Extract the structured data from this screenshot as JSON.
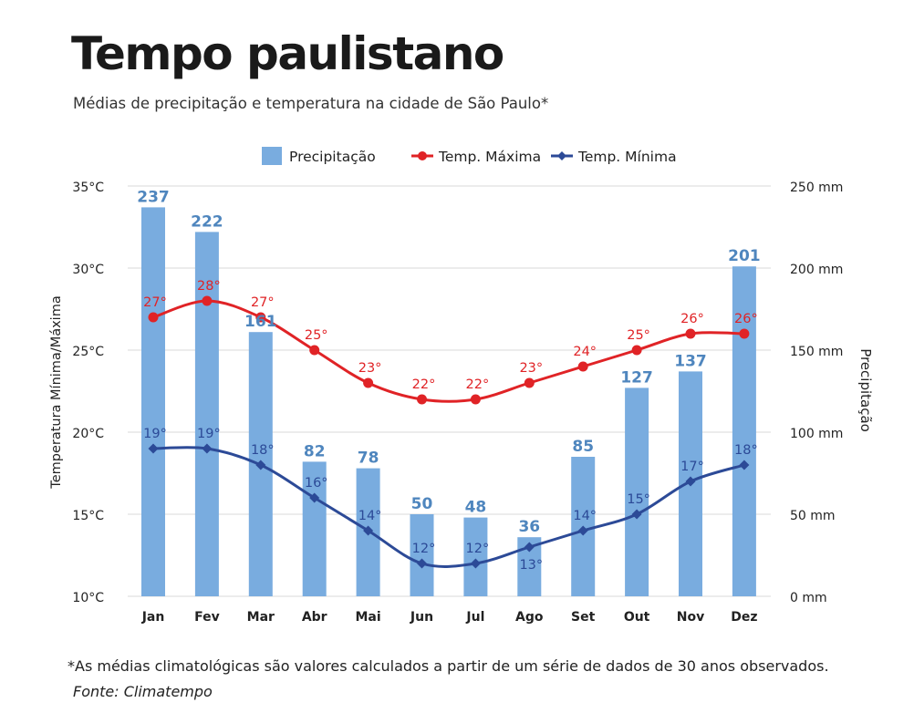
{
  "header": {
    "title": "Tempo paulistano",
    "subtitle": "Médias de precipitação e temperatura na cidade de São Paulo*"
  },
  "footer": {
    "note": "*As médias climatológicas são valores calculados a partir de um série de dados de 30 anos observados.",
    "source": "Fonte: Climatempo"
  },
  "colors": {
    "precipitation": "#79ACDF",
    "precipitation_label": "#4F86BE",
    "temp_max": "#E02326",
    "temp_min": "#2C4A97",
    "grid": "#D8D8D8",
    "text": "#222222"
  },
  "chart_data": {
    "type": "bar",
    "categories": [
      "Jan",
      "Fev",
      "Mar",
      "Abr",
      "Mai",
      "Jun",
      "Jul",
      "Ago",
      "Set",
      "Out",
      "Nov",
      "Dez"
    ],
    "series": [
      {
        "name": "Precipitação",
        "type": "bar",
        "axis": "right",
        "values": [
          237,
          222,
          161,
          82,
          78,
          50,
          48,
          36,
          85,
          127,
          137,
          201
        ],
        "labels": [
          "237",
          "222",
          "161",
          "82",
          "78",
          "50",
          "48",
          "36",
          "85",
          "127",
          "137",
          "201"
        ]
      },
      {
        "name": "Temp. Máxima",
        "type": "line",
        "axis": "left",
        "marker": "circle",
        "values": [
          27,
          28,
          27,
          25,
          23,
          22,
          22,
          23,
          24,
          25,
          26,
          26
        ],
        "labels": [
          "27°",
          "28°",
          "27°",
          "25°",
          "23°",
          "22°",
          "22°",
          "23°",
          "24°",
          "25°",
          "26°",
          "26°"
        ]
      },
      {
        "name": "Temp. Mínima",
        "type": "line",
        "axis": "left",
        "marker": "diamond",
        "values": [
          19,
          19,
          18,
          16,
          14,
          12,
          12,
          13,
          14,
          15,
          17,
          18
        ],
        "labels": [
          "19°",
          "19°",
          "18°",
          "16°",
          "14°",
          "12°",
          "12°",
          "13°",
          "14°",
          "15°",
          "17°",
          "18°"
        ]
      }
    ],
    "y_left": {
      "label": "Temperatura Mínima/Máxima",
      "range": [
        10,
        35
      ],
      "ticks": [
        "10°C",
        "15°C",
        "20°C",
        "25°C",
        "30°C",
        "35°C"
      ]
    },
    "y_right": {
      "label": "Precipitação",
      "range": [
        0,
        250
      ],
      "ticks": [
        "0 mm",
        "50 mm",
        "100 mm",
        "150 mm",
        "200 mm",
        "250 mm"
      ]
    },
    "grid": true,
    "legend_position": "top"
  }
}
